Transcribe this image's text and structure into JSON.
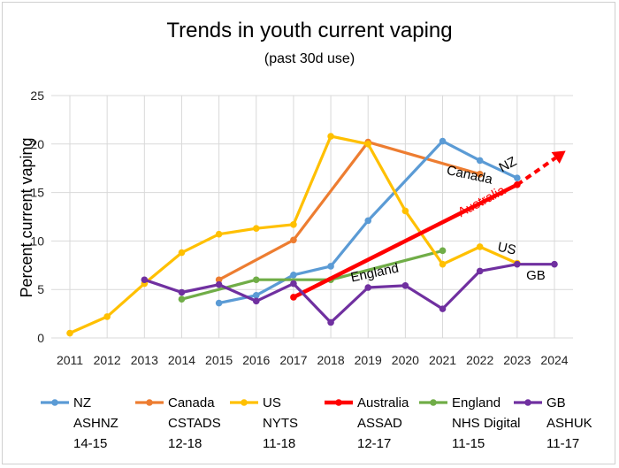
{
  "chart_data": {
    "type": "line",
    "title": "Trends in youth current vaping",
    "subtitle": "(past 30d use)",
    "ylabel": "Percent current vaping",
    "xlabel": "",
    "xlim": [
      2011,
      2024
    ],
    "ylim": [
      0,
      25
    ],
    "x_ticks": [
      "2011",
      "2012",
      "2013",
      "2014",
      "2015",
      "2016",
      "2017",
      "2018",
      "2019",
      "2020",
      "2021",
      "2022",
      "2023",
      "2024"
    ],
    "y_ticks": [
      "0",
      "5",
      "10",
      "15",
      "20",
      "25"
    ],
    "grid": true,
    "legend_position": "bottom",
    "series": [
      {
        "name": "NZ",
        "source": "ASHNZ",
        "years": "14-15",
        "color": "#5b9bd5",
        "marker": true,
        "points": [
          [
            2015,
            3.6
          ],
          [
            2016,
            4.4
          ],
          [
            2017,
            6.5
          ],
          [
            2018,
            7.4
          ],
          [
            2019,
            12.1
          ],
          [
            2021,
            20.3
          ],
          [
            2022,
            18.3
          ],
          [
            2023,
            16.5
          ]
        ]
      },
      {
        "name": "Canada",
        "source": "CSTADS",
        "years": "12-18",
        "color": "#ed7d31",
        "marker": true,
        "points": [
          [
            2015,
            6.0
          ],
          [
            2017,
            10.1
          ],
          [
            2019,
            20.2
          ],
          [
            2022,
            16.9
          ]
        ]
      },
      {
        "name": "US",
        "source": "NYTS",
        "years": "11-18",
        "color": "#ffc000",
        "marker": true,
        "points": [
          [
            2011,
            0.5
          ],
          [
            2012,
            2.2
          ],
          [
            2013,
            5.6
          ],
          [
            2014,
            8.8
          ],
          [
            2015,
            10.7
          ],
          [
            2016,
            11.3
          ],
          [
            2017,
            11.7
          ],
          [
            2018,
            20.8
          ],
          [
            2019,
            20.0
          ],
          [
            2020,
            13.1
          ],
          [
            2021,
            7.6
          ],
          [
            2022,
            9.4
          ],
          [
            2023,
            7.7
          ]
        ]
      },
      {
        "name": "Australia",
        "source": "ASSAD",
        "years": "12-17",
        "color": "#ff0000",
        "marker": true,
        "points": [
          [
            2017,
            4.2
          ],
          [
            2023,
            15.8
          ]
        ],
        "projection": [
          [
            2023,
            15.8
          ],
          [
            2024.3,
            19.3
          ]
        ]
      },
      {
        "name": "England",
        "source": "NHS Digital",
        "years": "11-15",
        "color": "#70ad47",
        "marker": true,
        "points": [
          [
            2014,
            4.0
          ],
          [
            2016,
            6.0
          ],
          [
            2018,
            6.0
          ],
          [
            2021,
            9.0
          ]
        ]
      },
      {
        "name": "GB",
        "source": "ASHUK",
        "years": "11-17",
        "color": "#7030a0",
        "marker": true,
        "points": [
          [
            2013,
            6.0
          ],
          [
            2014,
            4.7
          ],
          [
            2015,
            5.5
          ],
          [
            2016,
            3.8
          ],
          [
            2017,
            5.6
          ],
          [
            2018,
            1.6
          ],
          [
            2019,
            5.2
          ],
          [
            2020,
            5.4
          ],
          [
            2021,
            3.0
          ],
          [
            2022,
            6.9
          ],
          [
            2023,
            7.6
          ],
          [
            2024,
            7.6
          ]
        ]
      }
    ],
    "annotations": [
      {
        "text": "NZ",
        "series": "NZ",
        "x": 2022.8,
        "y": 17.5,
        "angle": -28,
        "color": "#000000"
      },
      {
        "text": "Canada",
        "series": "Canada",
        "x": 2021.7,
        "y": 16.4,
        "angle": 12,
        "color": "#000000"
      },
      {
        "text": "Australia",
        "series": "Australia",
        "x": 2022.1,
        "y": 13.7,
        "angle": -28,
        "color": "#ff0000"
      },
      {
        "text": "US",
        "series": "US",
        "x": 2022.7,
        "y": 8.8,
        "angle": 12,
        "color": "#000000"
      },
      {
        "text": "England",
        "series": "England",
        "x": 2019.2,
        "y": 6.3,
        "angle": -12,
        "color": "#000000"
      },
      {
        "text": "GB",
        "series": "GB",
        "x": 2023.5,
        "y": 6.0,
        "angle": 0,
        "color": "#000000"
      }
    ]
  }
}
